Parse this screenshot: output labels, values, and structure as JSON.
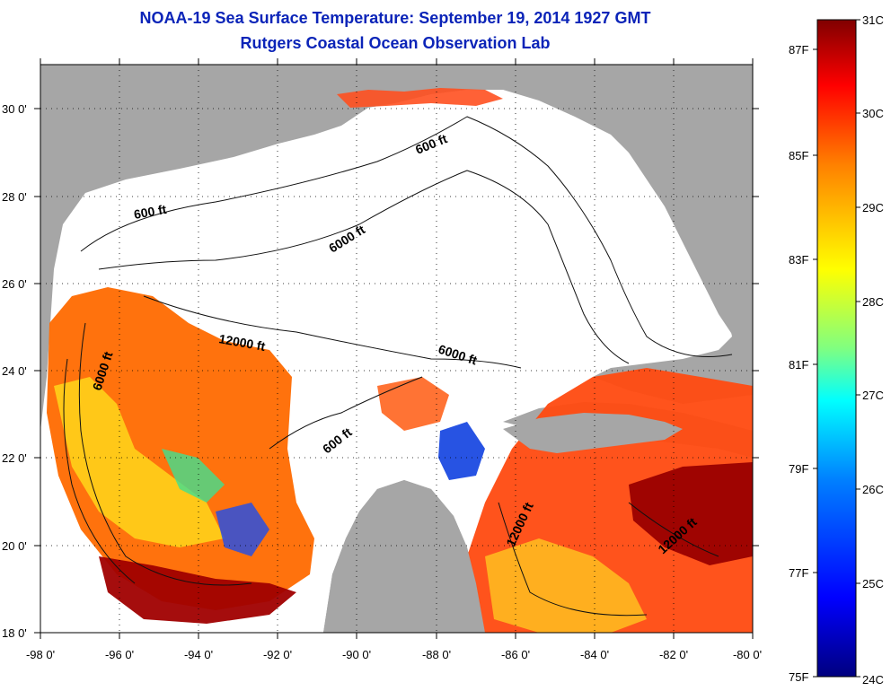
{
  "title": "NOAA-19 Sea Surface Temperature:  September 19, 2014 1927 GMT",
  "subtitle": "Rutgers Coastal Ocean Observation Lab",
  "axes": {
    "lon_ticks": [
      "-98 0'",
      "-96 0'",
      "-94 0'",
      "-92 0'",
      "-90 0'",
      "-88 0'",
      "-86 0'",
      "-84 0'",
      "-82 0'",
      "-80 0'"
    ],
    "lat_ticks": [
      "30 0'",
      "28 0'",
      "26 0'",
      "24 0'",
      "22 0'",
      "20 0'",
      "18 0'"
    ],
    "lon_range": [
      -98,
      -80
    ],
    "lat_range": [
      18,
      31
    ]
  },
  "contour_labels": {
    "c600_nw": "600 ft",
    "c600_n": "600 ft",
    "c6000_n": "6000 ft",
    "c12000_w": "12000 ft",
    "c6000_w": "6000 ft",
    "c6000_c": "6000 ft",
    "c600_yuc": "600 ft",
    "c12000_yuc": "12000 ft",
    "c12000_cay": "12000 ft"
  },
  "colorbar": {
    "celsius_labels": [
      "31C",
      "30C",
      "29C",
      "28C",
      "27C",
      "26C",
      "25C",
      "24C"
    ],
    "fahrenheit_labels": [
      "87F",
      "85F",
      "83F",
      "81F",
      "79F",
      "77F",
      "75F"
    ],
    "celsius_range": [
      24,
      31
    ],
    "colors": [
      "#00007f",
      "#0000ff",
      "#0080ff",
      "#00ffff",
      "#80ff80",
      "#ffff00",
      "#ff8000",
      "#ff0000",
      "#800000"
    ]
  },
  "colors": {
    "land": "#a6a6a6",
    "no_data": "#ffffff",
    "title": "#0b24b8"
  }
}
